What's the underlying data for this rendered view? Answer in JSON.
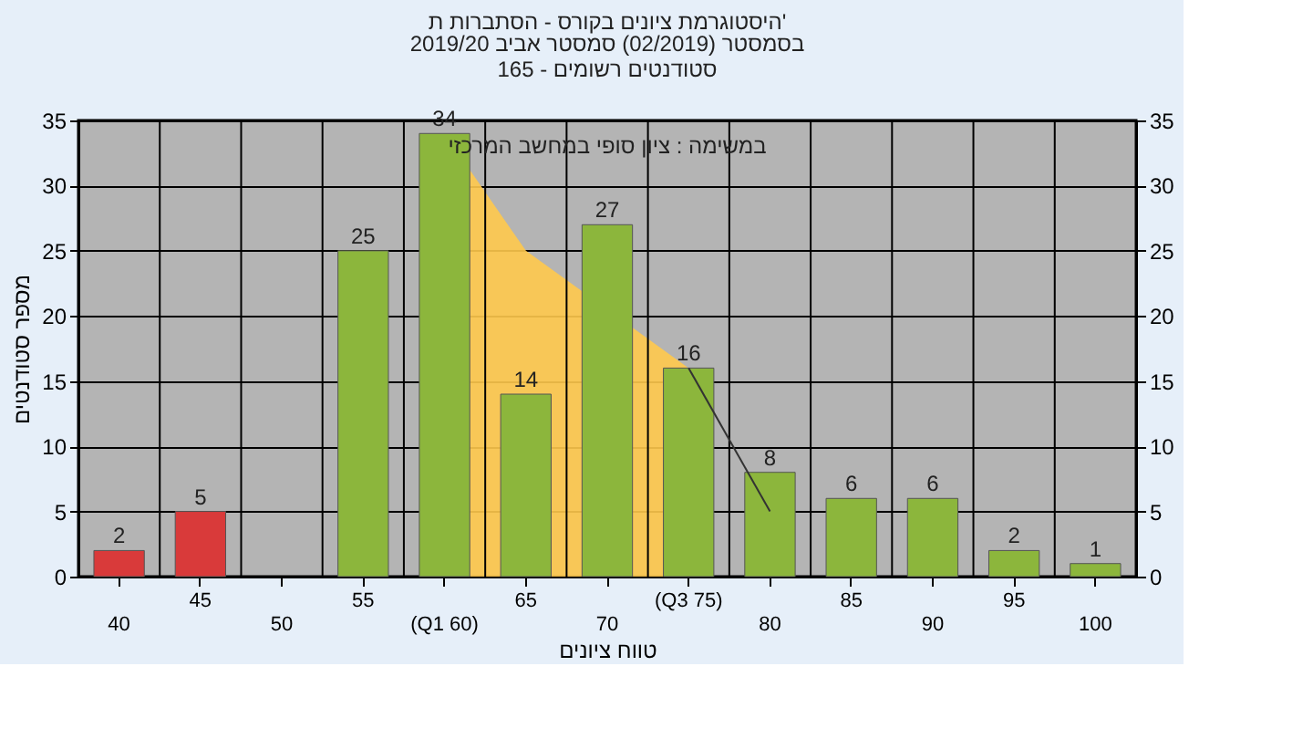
{
  "chart_data": {
    "type": "bar",
    "title": "היסטוגרמת ציונים בקורס - הסתברות ת'",
    "subtitle": [
      "בסמסטר (02/2019) סמסטר אביב 2019/20",
      "סטודנטים רשומים - 165"
    ],
    "xlabel": "טווח ציונים",
    "ylabel": "מספר סטודנטים",
    "annotations": [
      "במשימה : ציון סופי במחשב המרכזי"
    ],
    "categories": [
      "40",
      "45",
      "50",
      "55",
      "(Q1 60)",
      "65",
      "70",
      "(Q3 75)",
      "80",
      "85",
      "90",
      "95",
      "100"
    ],
    "series": [
      {
        "type": "area",
        "color": "#ffc94d",
        "x": [
          "(Q1 60)",
          "65",
          "(Q3 75)"
        ],
        "values": [
          34,
          25,
          16
        ]
      },
      {
        "colors": [
          "#d93a3a",
          "#d93a3a",
          "#8cb63c",
          "#8cb63c",
          "#8cb63c",
          "#8cb63c",
          "#8cb63c",
          "#8cb63c",
          "#8cb63c",
          "#8cb63c",
          "#8cb63c",
          "#8cb63c",
          "#8cb63c"
        ],
        "values": [
          2,
          5,
          null,
          25,
          34,
          14,
          27,
          16,
          8,
          6,
          6,
          2,
          1
        ],
        "value_labels": [
          "2",
          "5",
          null,
          "25",
          "34",
          "14",
          "27",
          "16",
          "8",
          "6",
          "6",
          "2",
          "1"
        ]
      },
      {
        "type": "line",
        "color": "#333333",
        "x": [
          "(Q3 75)",
          "80"
        ],
        "values": [
          16,
          5
        ]
      }
    ],
    "ylim": [
      0,
      35
    ],
    "yticks": [
      0,
      5,
      10,
      15,
      20,
      25,
      30,
      35
    ],
    "y2lim": [
      0,
      35
    ],
    "y2ticks": [
      0,
      5,
      10,
      15,
      20,
      25,
      30,
      35
    ],
    "grid": true,
    "marker": "none"
  }
}
